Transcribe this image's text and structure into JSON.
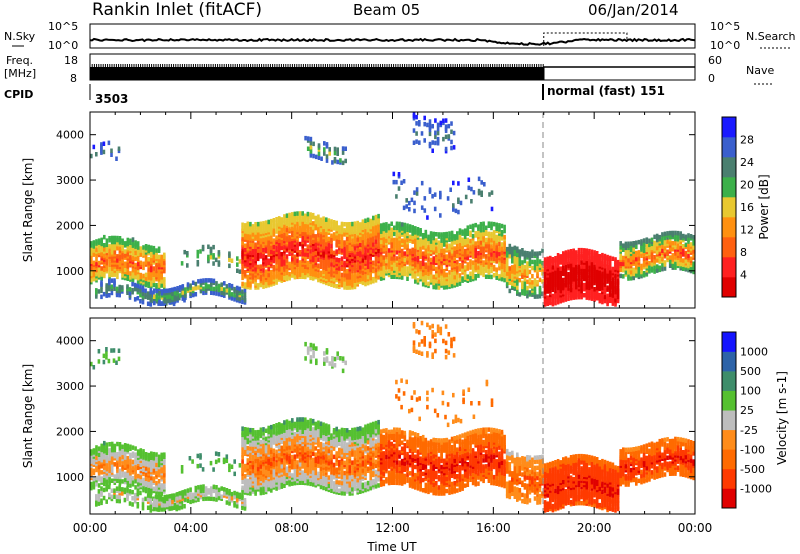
{
  "header": {
    "station": "Rankin Inlet (fitACF)",
    "beam": "Beam 05",
    "date": "06/Jan/2014"
  },
  "top_panels": {
    "nsky_label": "N.Sky",
    "nsearch_label": "N.Search",
    "noise_ticks": [
      "10^5",
      "10^0"
    ],
    "freq_label": "Freq.",
    "freq_unit": "[MHz]",
    "freq_ticks": [
      "18",
      "8"
    ],
    "nave_label": "Nave",
    "nave_ticks": [
      "60",
      "0"
    ],
    "cpid_label": "CPID",
    "cpid_first": "3503",
    "cpid_second": "normal (fast) 151"
  },
  "colors": {
    "power": [
      "#1a1aff",
      "#3a5fcd",
      "#4a7f6f",
      "#3cb04a",
      "#e8c830",
      "#ff9010",
      "#ff6010",
      "#ff2020",
      "#e00000"
    ],
    "velocity": [
      "#1414ff",
      "#2d63a8",
      "#3e8d6a",
      "#55c030",
      "#bdbdbd",
      "#ff8c1a",
      "#ff6a00",
      "#ff3a00",
      "#e00000"
    ],
    "grid": "#999999"
  },
  "chart_data": [
    {
      "type": "heatmap",
      "panel": "power",
      "ylabel": "Slant Range [km]",
      "ylim": [
        180,
        4500
      ],
      "y_ticks": [
        "4000",
        "3000",
        "2000",
        "1000"
      ],
      "xlim_hours": [
        0,
        24
      ],
      "colorbar_label": "Power [dB]",
      "colorbar_ticks": [
        "28",
        "24",
        "20",
        "16",
        "12",
        "8",
        "4"
      ],
      "cpid_change_hour": 18.0
    },
    {
      "type": "heatmap",
      "panel": "velocity",
      "ylabel": "Slant Range [km]",
      "ylim": [
        180,
        4500
      ],
      "y_ticks": [
        "4000",
        "3000",
        "2000",
        "1000"
      ],
      "x_ticks": [
        "00:00",
        "04:00",
        "08:00",
        "12:00",
        "16:00",
        "20:00",
        "00:00"
      ],
      "xlabel": "Time UT",
      "colorbar_label": "Velocity [m s-1]",
      "colorbar_ticks": [
        "1000",
        "500",
        "100",
        "25",
        "-25",
        "-100",
        "-500",
        "-1000"
      ],
      "cpid_change_hour": 18.0
    }
  ]
}
